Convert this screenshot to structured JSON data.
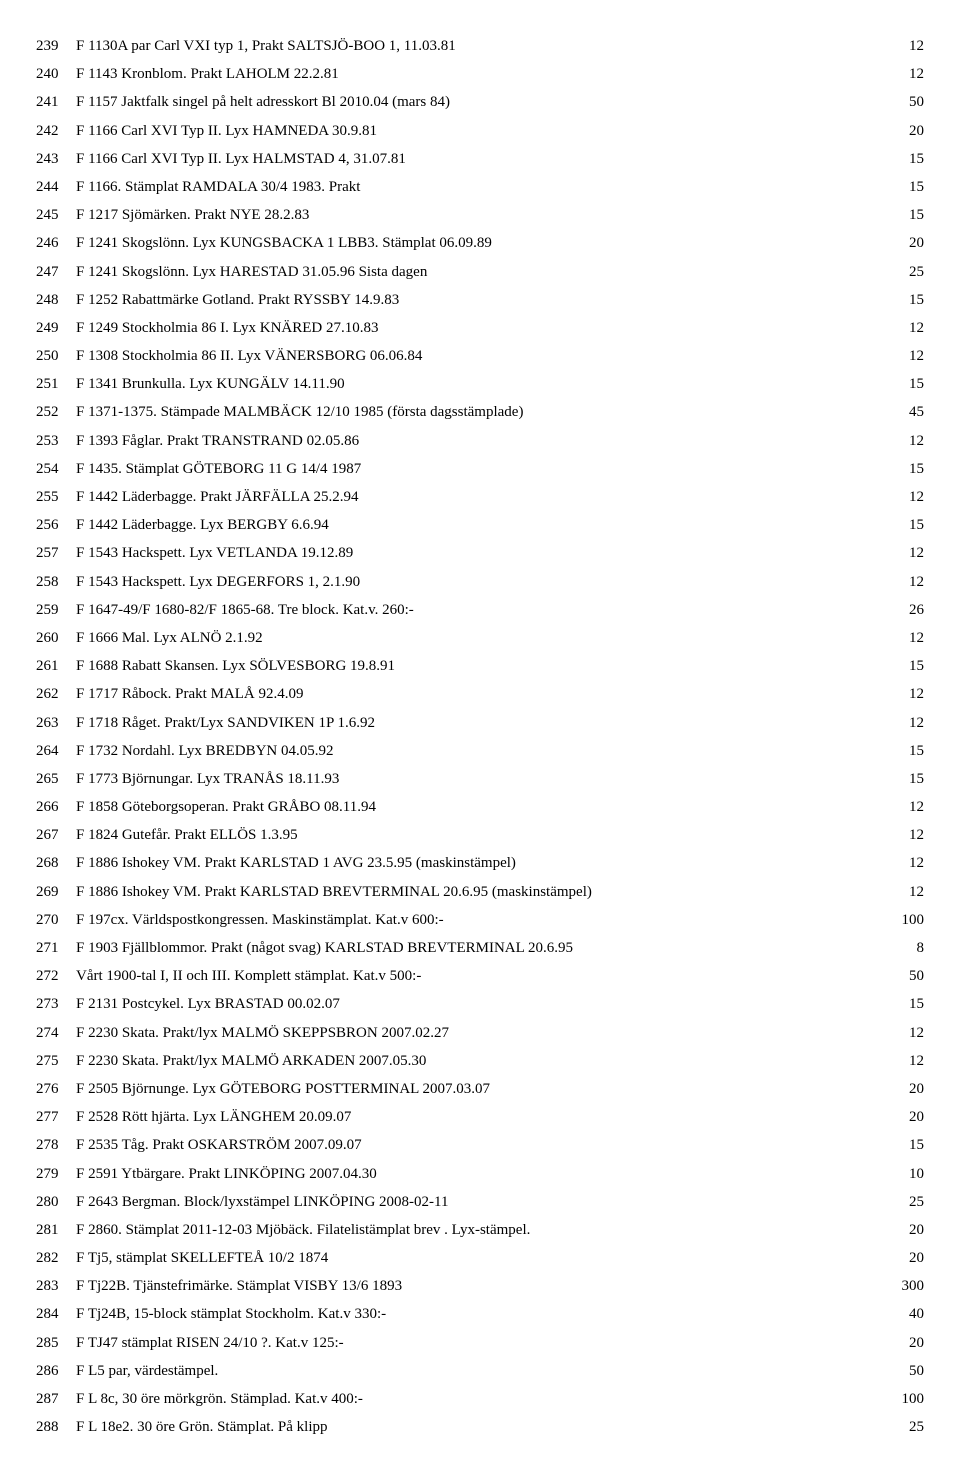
{
  "rows": [
    {
      "n": "239",
      "d": "F 1130A par Carl VXI typ 1, Prakt SALTSJÖ-BOO 1, 11.03.81",
      "p": "12"
    },
    {
      "n": "240",
      "d": "F 1143 Kronblom. Prakt LAHOLM 22.2.81",
      "p": "12"
    },
    {
      "n": "241",
      "d": "F 1157 Jaktfalk singel på helt adresskort Bl 2010.04 (mars 84)",
      "p": "50"
    },
    {
      "n": "242",
      "d": "F 1166 Carl XVI Typ II. Lyx HAMNEDA 30.9.81",
      "p": "20"
    },
    {
      "n": "243",
      "d": "F 1166 Carl XVI Typ II. Lyx HALMSTAD 4,  31.07.81",
      "p": "15"
    },
    {
      "n": "244",
      "d": "F 1166. Stämplat RAMDALA 30/4 1983. Prakt",
      "p": "15"
    },
    {
      "n": "245",
      "d": "F 1217 Sjömärken. Prakt NYE 28.2.83",
      "p": "15"
    },
    {
      "n": "246",
      "d": "F 1241 Skogslönn. Lyx KUNGSBACKA 1 LBB3. Stämplat 06.09.89",
      "p": "20"
    },
    {
      "n": "247",
      "d": "F 1241 Skogslönn. Lyx HARESTAD 31.05.96 Sista dagen",
      "p": "25"
    },
    {
      "n": "248",
      "d": "F 1252 Rabattmärke Gotland. Prakt RYSSBY 14.9.83",
      "p": "15"
    },
    {
      "n": "249",
      "d": "F 1249 Stockholmia 86 I. Lyx KNÄRED 27.10.83",
      "p": "12"
    },
    {
      "n": "250",
      "d": "F 1308 Stockholmia 86 II. Lyx VÄNERSBORG 06.06.84",
      "p": "12"
    },
    {
      "n": "251",
      "d": "F 1341 Brunkulla. Lyx KUNGÄLV 14.11.90",
      "p": "15"
    },
    {
      "n": "252",
      "d": "F 1371-1375. Stämpade MALMBÄCK 12/10 1985 (första dagsstämplade)",
      "p": "45"
    },
    {
      "n": "253",
      "d": "F 1393 Fåglar. Prakt TRANSTRAND 02.05.86",
      "p": "12"
    },
    {
      "n": "254",
      "d": "F 1435. Stämplat GÖTEBORG 11 G 14/4 1987",
      "p": "15"
    },
    {
      "n": "255",
      "d": "F 1442 Läderbagge. Prakt JÄRFÄLLA 25.2.94",
      "p": "12"
    },
    {
      "n": "256",
      "d": "F 1442 Läderbagge. Lyx BERGBY 6.6.94",
      "p": "15"
    },
    {
      "n": "257",
      "d": "F 1543 Hackspett. Lyx VETLANDA 19.12.89",
      "p": "12"
    },
    {
      "n": "258",
      "d": "F 1543 Hackspett. Lyx DEGERFORS 1,  2.1.90",
      "p": "12"
    },
    {
      "n": "259",
      "d": "F 1647-49/F 1680-82/F 1865-68. Tre block. Kat.v. 260:-",
      "p": "26"
    },
    {
      "n": "260",
      "d": "F 1666  Mal. Lyx ALNÖ 2.1.92",
      "p": "12"
    },
    {
      "n": "261",
      "d": "F 1688 Rabatt Skansen. Lyx SÖLVESBORG 19.8.91",
      "p": "15"
    },
    {
      "n": "262",
      "d": "F 1717 Råbock. Prakt MALÅ 92.4.09",
      "p": "12"
    },
    {
      "n": "263",
      "d": "F 1718 Råget. Prakt/Lyx SANDVIKEN 1P 1.6.92",
      "p": "12"
    },
    {
      "n": "264",
      "d": "F 1732 Nordahl. Lyx BREDBYN 04.05.92",
      "p": "15"
    },
    {
      "n": "265",
      "d": "F 1773 Björnungar. Lyx TRANÅS 18.11.93",
      "p": "15"
    },
    {
      "n": "266",
      "d": "F 1858 Göteborgsoperan. Prakt GRÅBO 08.11.94",
      "p": "12"
    },
    {
      "n": "267",
      "d": "F 1824 Gutefår. Prakt ELLÖS 1.3.95",
      "p": "12"
    },
    {
      "n": "268",
      "d": "F 1886 Ishokey VM. Prakt KARLSTAD 1 AVG 23.5.95 (maskinstämpel)",
      "p": "12"
    },
    {
      "n": "269",
      "d": "F 1886 Ishokey VM. Prakt KARLSTAD BREVTERMINAL 20.6.95 (maskinstämpel)",
      "p": "12"
    },
    {
      "n": "270",
      "d": "F 197cx. Världspostkongressen. Maskinstämplat. Kat.v 600:-",
      "p": "100"
    },
    {
      "n": "271",
      "d": "F 1903 Fjällblommor. Prakt (något svag) KARLSTAD BREVTERMINAL 20.6.95",
      "p": "8"
    },
    {
      "n": "272",
      "d": "Vårt 1900-tal I, II och III. Komplett stämplat. Kat.v 500:-",
      "p": "50"
    },
    {
      "n": "273",
      "d": "F 2131 Postcykel. Lyx BRASTAD 00.02.07",
      "p": "15"
    },
    {
      "n": "274",
      "d": "F 2230 Skata. Prakt/lyx MALMÖ SKEPPSBRON  2007.02.27",
      "p": "12"
    },
    {
      "n": "275",
      "d": "F 2230 Skata. Prakt/lyx MALMÖ ARKADEN   2007.05.30",
      "p": "12"
    },
    {
      "n": "276",
      "d": "F 2505 Björnunge. Lyx  GÖTEBORG POSTTERMINAL 2007.03.07",
      "p": "20"
    },
    {
      "n": "277",
      "d": "F 2528 Rött hjärta. Lyx LÄNGHEM 20.09.07",
      "p": "20"
    },
    {
      "n": "278",
      "d": "F 2535 Tåg. Prakt OSKARSTRÖM 2007.09.07",
      "p": "15"
    },
    {
      "n": "279",
      "d": "F 2591 Ytbärgare. Prakt LINKÖPING 2007.04.30",
      "p": "10"
    },
    {
      "n": "280",
      "d": "F 2643 Bergman. Block/lyxstämpel LINKÖPING 2008-02-11",
      "p": "25"
    },
    {
      "n": "281",
      "d": "F 2860. Stämplat 2011-12-03 Mjöbäck. Filatelistämplat brev . Lyx-stämpel.",
      "p": "20"
    },
    {
      "n": "282",
      "d": "F Tj5, stämplat SKELLEFTEÅ 10/2 1874",
      "p": "20"
    },
    {
      "n": "283",
      "d": "F Tj22B. Tjänstefrimärke. Stämplat VISBY 13/6 1893",
      "p": "300"
    },
    {
      "n": "284",
      "d": "F Tj24B, 15-block stämplat Stockholm. Kat.v 330:-",
      "p": "40"
    },
    {
      "n": "285",
      "d": "F TJ47 stämplat RISEN 24/10 ?. Kat.v 125:-",
      "p": "20"
    },
    {
      "n": "286",
      "d": "F L5 par, värdestämpel.",
      "p": "50"
    },
    {
      "n": "287",
      "d": "F L 8c, 30 öre mörkgrön. Stämplad. Kat.v 400:-",
      "p": "100"
    },
    {
      "n": "288",
      "d": "F L 18e2. 30 öre Grön. Stämplat. På klipp",
      "p": "25"
    }
  ]
}
